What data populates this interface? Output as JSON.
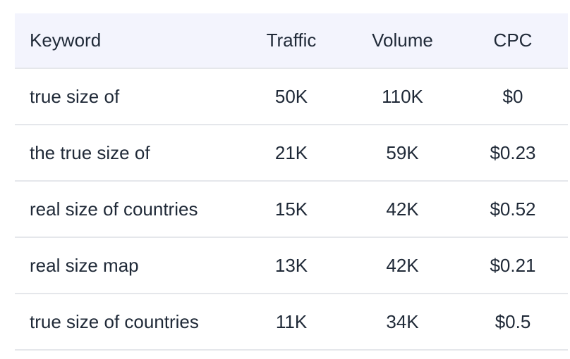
{
  "table": {
    "headers": {
      "keyword": "Keyword",
      "traffic": "Traffic",
      "volume": "Volume",
      "cpc": "CPC"
    },
    "rows": [
      {
        "keyword": "true size of",
        "traffic": "50K",
        "volume": "110K",
        "cpc": "$0"
      },
      {
        "keyword": "the true size of",
        "traffic": "21K",
        "volume": "59K",
        "cpc": "$0.23"
      },
      {
        "keyword": "real size of countries",
        "traffic": "15K",
        "volume": "42K",
        "cpc": "$0.52"
      },
      {
        "keyword": "real size map",
        "traffic": "13K",
        "volume": "42K",
        "cpc": "$0.21"
      },
      {
        "keyword": "true size of countries",
        "traffic": "11K",
        "volume": "34K",
        "cpc": "$0.5"
      }
    ]
  }
}
